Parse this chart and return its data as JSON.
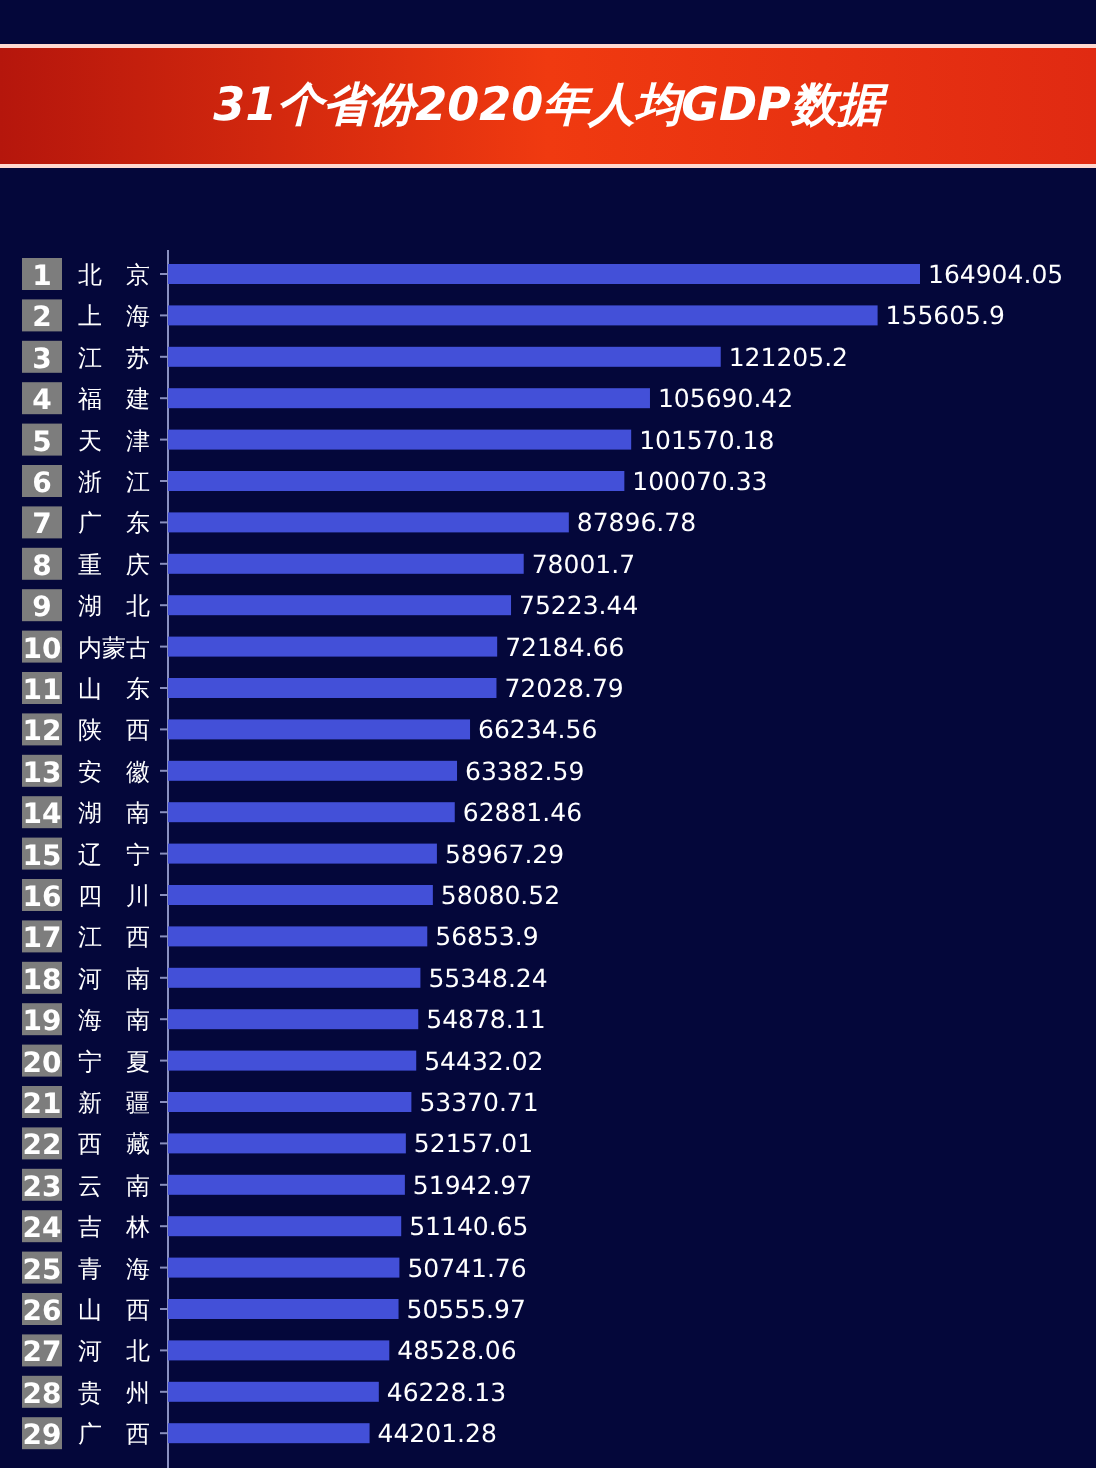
{
  "chart_data": {
    "type": "bar",
    "orientation": "horizontal",
    "title": "31个省份2020年人均GDP数据",
    "categories": [
      "1 北京",
      "2 上海",
      "3 江苏",
      "4 福建",
      "5 天津",
      "6 浙江",
      "7 广东",
      "8 重庆",
      "9 湖北",
      "10 内蒙古",
      "11 山东",
      "12 陕西",
      "13 安徽",
      "14 湖南",
      "15 辽宁",
      "16 四川",
      "17 江西",
      "18 河南",
      "19 海南",
      "20 宁夏",
      "21 新疆",
      "22 西藏",
      "23 云南",
      "24 吉林",
      "25 青海",
      "26 山西",
      "27 河北",
      "28 贵州",
      "29 广西"
    ],
    "values": [
      164904.05,
      155605.9,
      121205.2,
      105690.42,
      101570.18,
      100070.33,
      87896.78,
      78001.7,
      75223.44,
      72184.66,
      72028.79,
      66234.56,
      63382.59,
      62881.46,
      58967.29,
      58080.52,
      56853.9,
      55348.24,
      54878.11,
      54432.02,
      53370.71,
      52157.01,
      51942.97,
      51140.65,
      50741.76,
      50555.97,
      48528.06,
      46228.13,
      44201.28
    ],
    "color": "#4350d8",
    "data_labels": true
  }
}
